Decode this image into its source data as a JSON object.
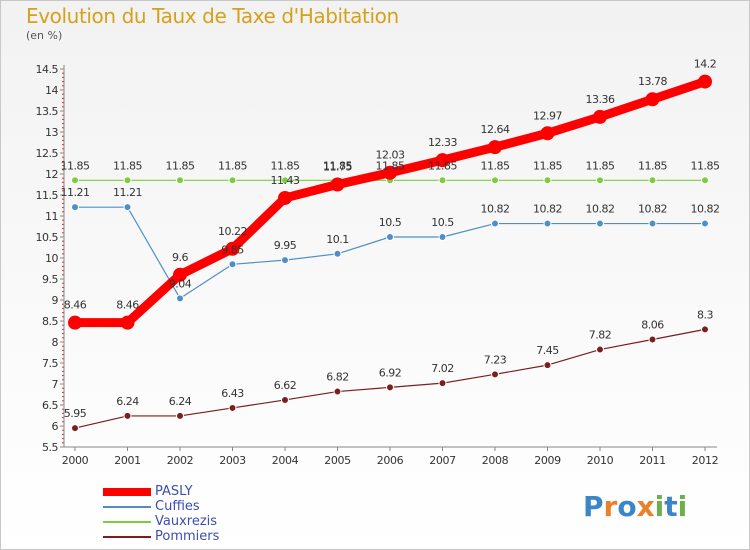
{
  "title": "Evolution du Taux de Taxe d'Habitation",
  "subtitle": "(en %)",
  "logo": {
    "letters": [
      "P",
      "r",
      "o",
      "x",
      "i",
      "t",
      "i"
    ],
    "colors": [
      "#3a86c8",
      "#e8822a",
      "#3a86c8",
      "#e8822a",
      "#6bb04a",
      "#3a86c8",
      "#6bb04a"
    ]
  },
  "chart_data": {
    "type": "line",
    "title": "Evolution du Taux de Taxe d'Habitation",
    "subtitle": "(en %)",
    "x": [
      "2000",
      "2001",
      "2002",
      "2003",
      "2004",
      "2005",
      "2006",
      "2007",
      "2008",
      "2009",
      "2010",
      "2011",
      "2012"
    ],
    "ylim": [
      5.5,
      14.5
    ],
    "yticks": [
      "5.5",
      "6",
      "6.5",
      "7",
      "7.5",
      "8",
      "8.5",
      "9",
      "9.5",
      "10",
      "10.5",
      "11",
      "11.5",
      "12",
      "12.5",
      "13",
      "13.5",
      "14",
      "14.5"
    ],
    "grid": false,
    "legend_position": "bottom-left",
    "series": [
      {
        "name": "PASLY",
        "color": "#ff0000",
        "values": [
          8.46,
          8.46,
          9.6,
          10.22,
          11.43,
          11.75,
          12.03,
          12.33,
          12.64,
          12.97,
          13.36,
          13.78,
          14.2
        ],
        "labels": [
          "8.46",
          "8.46",
          "9.6",
          "10.22",
          "11.43",
          "11.75",
          "12.03",
          "12.33",
          "12.64",
          "12.97",
          "13.36",
          "13.78",
          "14.2"
        ]
      },
      {
        "name": "Cuffies",
        "color": "#4f8fc8",
        "values": [
          11.21,
          11.21,
          9.04,
          9.85,
          9.95,
          10.1,
          10.5,
          10.5,
          10.82,
          10.82,
          10.82,
          10.82,
          10.82
        ],
        "labels": [
          "11.21",
          "11.21",
          "9.04",
          "9.85",
          "9.95",
          "10.1",
          "10.5",
          "10.5",
          "10.82",
          "10.82",
          "10.82",
          "10.82",
          "10.82"
        ]
      },
      {
        "name": "Vauxrezis",
        "color": "#7ccc3c",
        "values": [
          11.85,
          11.85,
          11.85,
          11.85,
          11.85,
          11.85,
          11.85,
          11.85,
          11.85,
          11.85,
          11.85,
          11.85,
          11.85
        ],
        "labels": [
          "11.85",
          "11.85",
          "11.85",
          "11.85",
          "11.85",
          "11.85",
          "11.85",
          "11.85",
          "11.85",
          "11.85",
          "11.85",
          "11.85",
          "11.85"
        ]
      },
      {
        "name": "Pommiers",
        "color": "#7a1e1e",
        "values": [
          5.95,
          6.24,
          6.24,
          6.43,
          6.62,
          6.82,
          6.92,
          7.02,
          7.23,
          7.45,
          7.82,
          8.06,
          8.3
        ],
        "labels": [
          "5.95",
          "6.24",
          "6.24",
          "6.43",
          "6.62",
          "6.82",
          "6.92",
          "7.02",
          "7.23",
          "7.45",
          "7.82",
          "8.06",
          "8.3"
        ]
      }
    ]
  }
}
